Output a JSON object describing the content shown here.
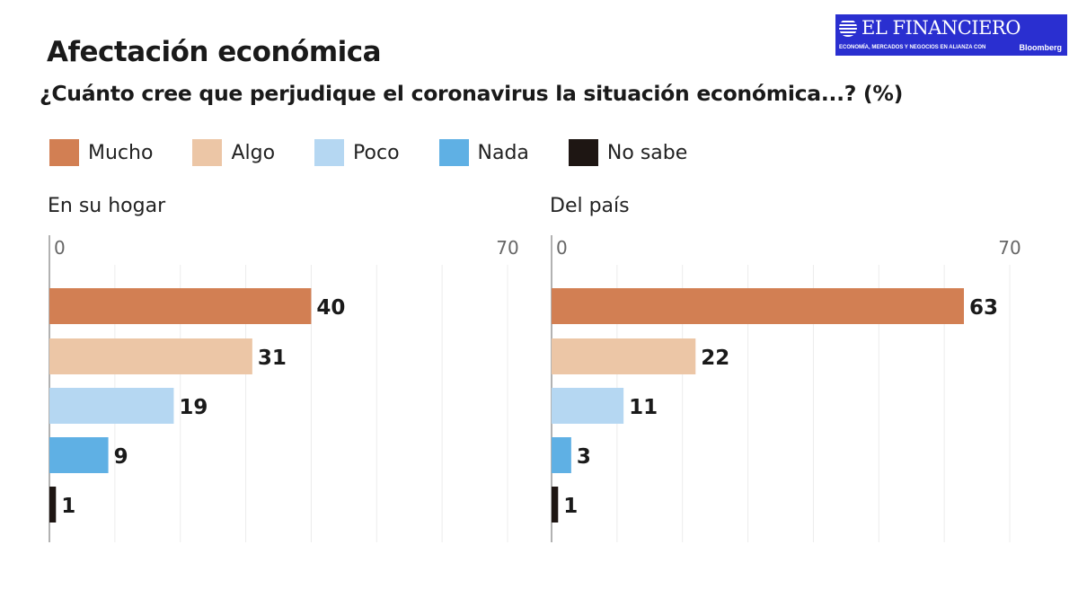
{
  "title": "Afectación económica",
  "subtitle": "¿Cuánto cree que perjudique el coronavirus la situación económica...? (%)",
  "logo": {
    "name": "EL FINANCIERO",
    "tagline": "ECONOMÍA, MERCADOS Y NEGOCIOS EN ALIANZA CON",
    "partner": "Bloomberg"
  },
  "legend": [
    {
      "label": "Mucho",
      "color": "#d27f53"
    },
    {
      "label": "Algo",
      "color": "#ecc6a6"
    },
    {
      "label": "Poco",
      "color": "#b5d7f2"
    },
    {
      "label": "Nada",
      "color": "#5fb0e4"
    },
    {
      "label": "No sabe",
      "color": "#1e1613"
    }
  ],
  "chart_data": [
    {
      "type": "bar",
      "orientation": "horizontal",
      "title": "En su hogar",
      "categories": [
        "Mucho",
        "Algo",
        "Poco",
        "Nada",
        "No sabe"
      ],
      "values": [
        40,
        31,
        19,
        9,
        1
      ],
      "xlim": [
        0,
        70
      ],
      "tick_labels": [
        "0",
        "70"
      ],
      "grid": true
    },
    {
      "type": "bar",
      "orientation": "horizontal",
      "title": "Del país",
      "categories": [
        "Mucho",
        "Algo",
        "Poco",
        "Nada",
        "No sabe"
      ],
      "values": [
        63,
        22,
        11,
        3,
        1
      ],
      "xlim": [
        0,
        70
      ],
      "tick_labels": [
        "0",
        "70"
      ],
      "grid": true
    }
  ]
}
